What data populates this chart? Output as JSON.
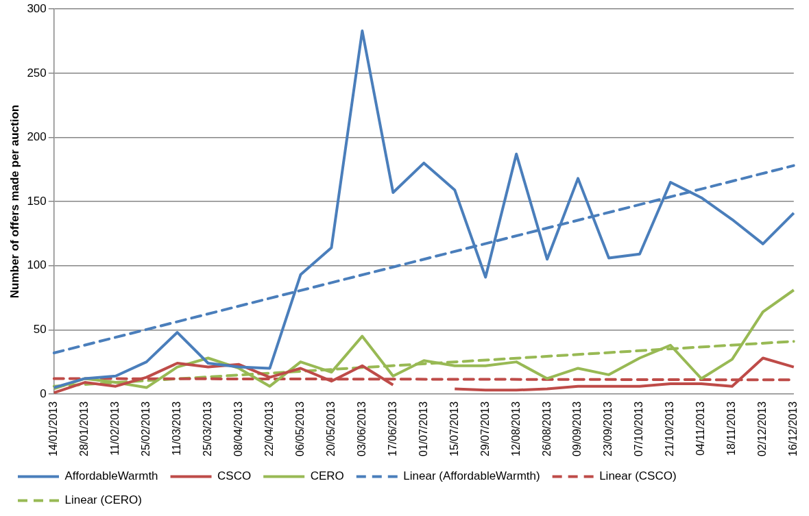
{
  "chart_data": {
    "type": "line",
    "ylabel": "Number of offers made per auction",
    "categories": [
      "14/01/2013",
      "28/01/2013",
      "11/02/2013",
      "25/02/2013",
      "11/03/2013",
      "25/03/2013",
      "08/04/2013",
      "22/04/2013",
      "06/05/2013",
      "20/05/2013",
      "03/06/2013",
      "17/06/2013",
      "01/07/2013",
      "15/07/2013",
      "29/07/2013",
      "12/08/2013",
      "26/08/2013",
      "09/09/2013",
      "23/09/2013",
      "07/10/2013",
      "21/10/2013",
      "04/11/2013",
      "18/11/2013",
      "02/12/2013",
      "16/12/2013"
    ],
    "series": [
      {
        "name": "AffordableWarmth",
        "color": "#4a7ebb",
        "values": [
          5,
          12,
          14,
          25,
          48,
          24,
          21,
          20,
          93,
          114,
          283,
          157,
          180,
          159,
          91,
          187,
          105,
          168,
          106,
          109,
          165,
          153,
          136,
          117,
          141
        ]
      },
      {
        "name": "CSCO",
        "color": "#be4b48",
        "values": [
          1,
          9,
          6,
          13,
          24,
          21,
          23,
          13,
          20,
          10,
          22,
          7,
          null,
          4,
          3,
          3,
          4,
          6,
          6,
          6,
          8,
          8,
          6,
          28,
          21
        ]
      },
      {
        "name": "CERO",
        "color": "#98b954",
        "values": [
          4,
          12,
          9,
          5,
          21,
          28,
          20,
          6,
          25,
          17,
          45,
          14,
          26,
          22,
          22,
          25,
          12,
          20,
          15,
          28,
          38,
          12,
          27,
          64,
          81
        ]
      },
      {
        "name": "Linear (AffordableWarmth)",
        "color": "#4a7ebb",
        "line_style": "dashed",
        "x": [
          "14/01/2013",
          "16/12/2013"
        ],
        "values": [
          32,
          178
        ]
      },
      {
        "name": "Linear (CSCO)",
        "color": "#be4b48",
        "line_style": "dashed",
        "x": [
          "14/01/2013",
          "16/12/2013"
        ],
        "values": [
          12,
          11
        ]
      },
      {
        "name": "Linear (CERO)",
        "color": "#98b954",
        "line_style": "dashed",
        "x": [
          "14/01/2013",
          "16/12/2013"
        ],
        "values": [
          6,
          41
        ]
      }
    ],
    "ylim": [
      0,
      300
    ],
    "yticks": [
      0,
      50,
      100,
      150,
      200,
      250,
      300
    ],
    "grid": "y",
    "legend": "bottom",
    "marker": "none",
    "line_style": "solid"
  }
}
